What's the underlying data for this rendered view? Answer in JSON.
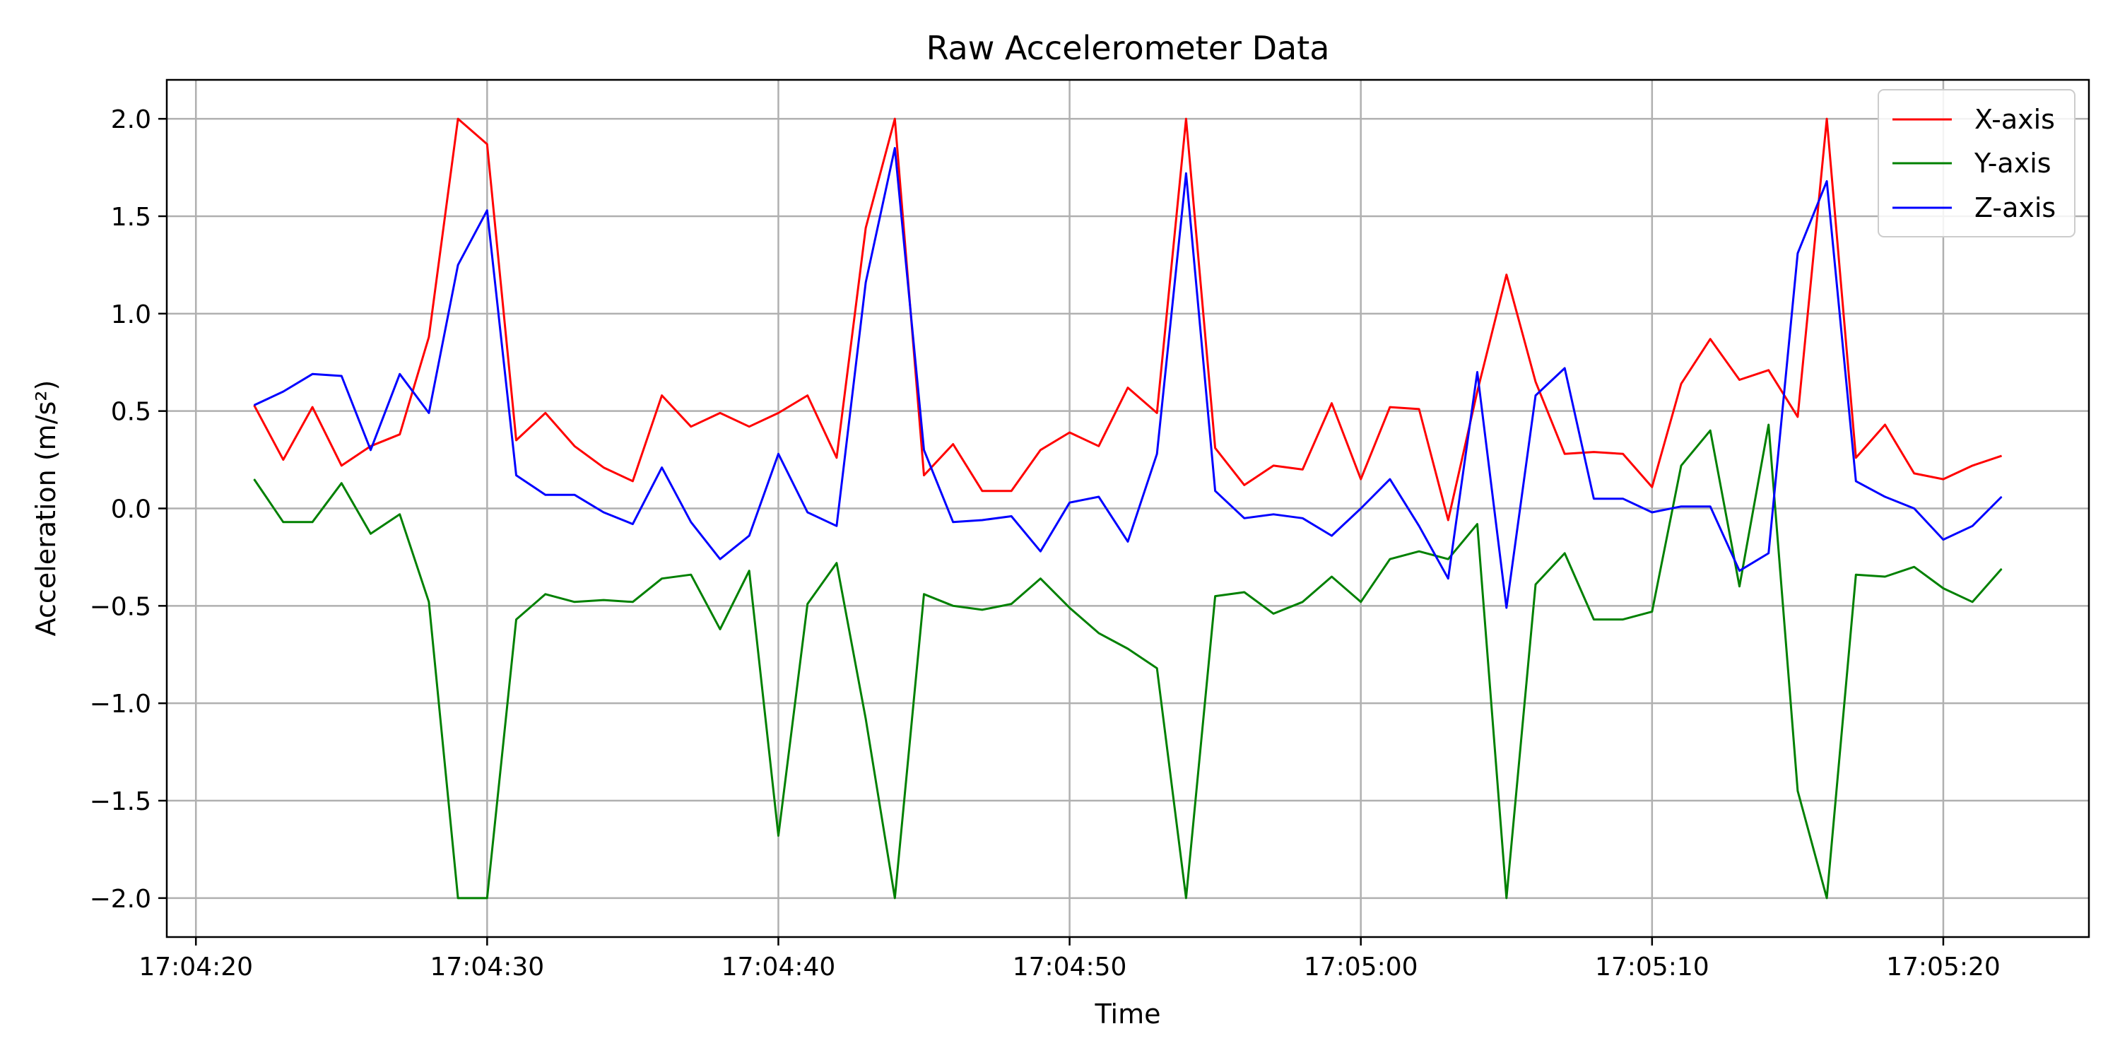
{
  "chart_data": {
    "type": "line",
    "title": "Raw Accelerometer Data",
    "xlabel": "Time",
    "ylabel": "Acceleration (m/s²)",
    "x_tick_labels": [
      "17:04:20",
      "17:04:30",
      "17:04:40",
      "17:04:50",
      "17:05:00",
      "17:05:10",
      "17:05:20"
    ],
    "y_tick_labels": [
      "−2.0",
      "−1.5",
      "−1.0",
      "−0.5",
      "0.0",
      "0.5",
      "1.0",
      "1.5",
      "2.0"
    ],
    "xlim": [
      "17:04:19",
      "17:05:25"
    ],
    "ylim": [
      -2.2,
      2.2
    ],
    "grid": true,
    "legend_position": "top-right",
    "x": [
      "17:04:22",
      "17:04:23",
      "17:04:24",
      "17:04:25",
      "17:04:26",
      "17:04:27",
      "17:04:28",
      "17:04:29",
      "17:04:30",
      "17:04:31",
      "17:04:32",
      "17:04:33",
      "17:04:34",
      "17:04:35",
      "17:04:36",
      "17:04:37",
      "17:04:38",
      "17:04:39",
      "17:04:40",
      "17:04:41",
      "17:04:42",
      "17:04:43",
      "17:04:44",
      "17:04:45",
      "17:04:46",
      "17:04:47",
      "17:04:48",
      "17:04:49",
      "17:04:50",
      "17:04:51",
      "17:04:52",
      "17:04:53",
      "17:04:54",
      "17:04:55",
      "17:04:56",
      "17:04:57",
      "17:04:58",
      "17:04:59",
      "17:05:00",
      "17:05:01",
      "17:05:02",
      "17:05:03",
      "17:05:04",
      "17:05:05",
      "17:05:06",
      "17:05:07",
      "17:05:08",
      "17:05:09",
      "17:05:10",
      "17:05:11",
      "17:05:12",
      "17:05:13",
      "17:05:14",
      "17:05:15",
      "17:05:16",
      "17:05:17",
      "17:05:18",
      "17:05:19",
      "17:05:20",
      "17:05:21",
      "17:05:22"
    ],
    "series": [
      {
        "name": "X-axis",
        "color": "#ff0000",
        "values": [
          0.53,
          0.25,
          0.52,
          0.22,
          0.32,
          0.38,
          0.88,
          2.0,
          1.87,
          0.35,
          0.49,
          0.32,
          0.21,
          0.14,
          0.58,
          0.42,
          0.49,
          0.42,
          0.49,
          0.58,
          0.26,
          1.44,
          2.0,
          0.17,
          0.33,
          0.09,
          0.09,
          0.3,
          0.39,
          0.32,
          0.62,
          0.49,
          2.0,
          0.31,
          0.12,
          0.22,
          0.2,
          0.54,
          0.15,
          0.52,
          0.51,
          -0.06,
          0.6,
          1.2,
          0.65,
          0.28,
          0.29,
          0.28,
          0.11,
          0.64,
          0.87,
          0.66,
          0.71,
          0.47,
          2.0,
          0.26,
          0.43,
          0.18,
          0.15,
          0.22,
          0.27
        ]
      },
      {
        "name": "Y-axis",
        "color": "#008000",
        "values": [
          0.15,
          -0.07,
          -0.07,
          0.13,
          -0.13,
          -0.03,
          -0.48,
          -2.0,
          -2.0,
          -0.57,
          -0.44,
          -0.48,
          -0.47,
          -0.48,
          -0.36,
          -0.34,
          -0.62,
          -0.32,
          -1.68,
          -0.49,
          -0.28,
          -1.08,
          -2.0,
          -0.44,
          -0.5,
          -0.52,
          -0.49,
          -0.36,
          -0.51,
          -0.64,
          -0.72,
          -0.82,
          -2.0,
          -0.45,
          -0.43,
          -0.54,
          -0.48,
          -0.35,
          -0.48,
          -0.26,
          -0.22,
          -0.26,
          -0.08,
          -2.0,
          -0.39,
          -0.23,
          -0.57,
          -0.57,
          -0.53,
          0.22,
          0.4,
          -0.4,
          0.43,
          -1.45,
          -2.0,
          -0.34,
          -0.35,
          -0.3,
          -0.41,
          -0.48,
          -0.31
        ]
      },
      {
        "name": "Z-axis",
        "color": "#0000ff",
        "values": [
          0.53,
          0.6,
          0.69,
          0.68,
          0.3,
          0.69,
          0.49,
          1.25,
          1.53,
          0.17,
          0.07,
          0.07,
          -0.02,
          -0.08,
          0.21,
          -0.07,
          -0.26,
          -0.14,
          0.28,
          -0.02,
          -0.09,
          1.16,
          1.85,
          0.3,
          -0.07,
          -0.06,
          -0.04,
          -0.22,
          0.03,
          0.06,
          -0.17,
          0.28,
          1.72,
          0.09,
          -0.05,
          -0.03,
          -0.05,
          -0.14,
          0.0,
          0.15,
          -0.09,
          -0.36,
          0.7,
          -0.51,
          0.58,
          0.72,
          0.05,
          0.05,
          -0.02,
          0.01,
          0.01,
          -0.32,
          -0.23,
          1.31,
          1.68,
          0.14,
          0.06,
          0.0,
          -0.16,
          -0.09,
          0.06
        ]
      }
    ]
  }
}
